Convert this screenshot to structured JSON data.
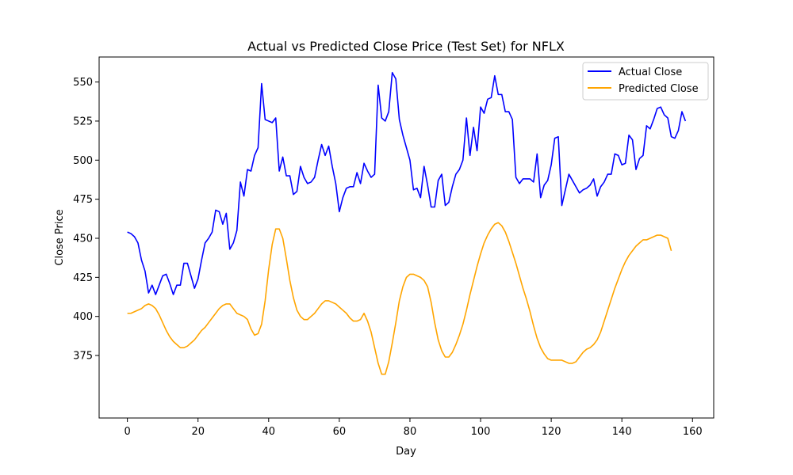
{
  "chart_data": {
    "type": "line",
    "title": "Actual vs Predicted Close Price (Test Set) for NFLX",
    "xlabel": "Day",
    "ylabel": "Close Price",
    "xlim": [
      -8,
      166
    ],
    "ylim": [
      335,
      566
    ],
    "xticks": [
      0,
      20,
      40,
      60,
      80,
      100,
      120,
      140,
      160
    ],
    "yticks": [
      375,
      400,
      425,
      450,
      475,
      500,
      525,
      550
    ],
    "legend_position": "top-right",
    "grid": false,
    "series": [
      {
        "name": "Actual Close",
        "color": "#0000ff",
        "values": [
          454,
          453,
          451,
          447,
          436,
          429,
          415,
          420,
          414,
          420,
          426,
          427,
          421,
          414,
          420,
          420,
          434,
          434,
          426,
          418,
          424,
          436,
          447,
          450,
          454,
          468,
          467,
          459,
          466,
          443,
          447,
          455,
          486,
          477,
          494,
          493,
          503,
          508,
          549,
          526,
          525,
          524,
          527,
          493,
          502,
          490,
          490,
          478,
          480,
          496,
          489,
          485,
          486,
          489,
          500,
          510,
          503,
          509,
          496,
          485,
          467,
          476,
          482,
          483,
          483,
          492,
          485,
          498,
          493,
          489,
          491,
          548,
          527,
          525,
          531,
          556,
          552,
          526,
          516,
          508,
          500,
          481,
          482,
          476,
          496,
          484,
          470,
          470,
          487,
          491,
          471,
          473,
          483,
          491,
          494,
          500,
          527,
          503,
          521,
          506,
          534,
          530,
          539,
          540,
          554,
          542,
          542,
          531,
          531,
          526,
          489,
          485,
          488,
          488,
          488,
          486,
          504,
          476,
          484,
          487,
          497,
          514,
          515,
          471,
          481,
          491,
          487,
          483,
          479,
          481,
          482,
          484,
          488,
          477,
          483,
          486,
          491,
          491,
          504,
          503,
          497,
          498,
          516,
          513,
          494,
          501,
          503,
          522,
          520,
          526,
          533,
          534,
          529,
          527,
          515,
          514,
          519,
          531,
          525
        ]
      },
      {
        "name": "Predicted Close",
        "color": "#ffa500",
        "values": [
          402,
          402,
          403,
          404,
          405,
          407,
          408,
          407,
          405,
          401,
          396,
          391,
          387,
          384,
          382,
          380,
          380,
          381,
          383,
          385,
          388,
          391,
          393,
          396,
          399,
          402,
          405,
          407,
          408,
          408,
          405,
          402,
          401,
          400,
          398,
          392,
          388,
          389,
          395,
          410,
          430,
          446,
          456,
          456,
          450,
          437,
          423,
          412,
          404,
          400,
          398,
          398,
          400,
          402,
          405,
          408,
          410,
          410,
          409,
          408,
          406,
          404,
          402,
          399,
          397,
          397,
          398,
          402,
          397,
          390,
          380,
          370,
          363,
          363,
          371,
          383,
          396,
          410,
          419,
          425,
          427,
          427,
          426,
          425,
          423,
          419,
          409,
          396,
          385,
          378,
          374,
          374,
          377,
          382,
          388,
          395,
          404,
          414,
          423,
          432,
          440,
          447,
          452,
          456,
          459,
          460,
          458,
          454,
          448,
          441,
          434,
          426,
          418,
          411,
          403,
          394,
          386,
          380,
          376,
          373,
          372,
          372,
          372,
          372,
          371,
          370,
          370,
          371,
          374,
          377,
          379,
          380,
          382,
          385,
          390,
          397,
          404,
          411,
          418,
          424,
          430,
          435,
          439,
          442,
          445,
          447,
          449,
          449,
          450,
          451,
          452,
          452,
          451,
          450,
          442
        ]
      }
    ]
  }
}
